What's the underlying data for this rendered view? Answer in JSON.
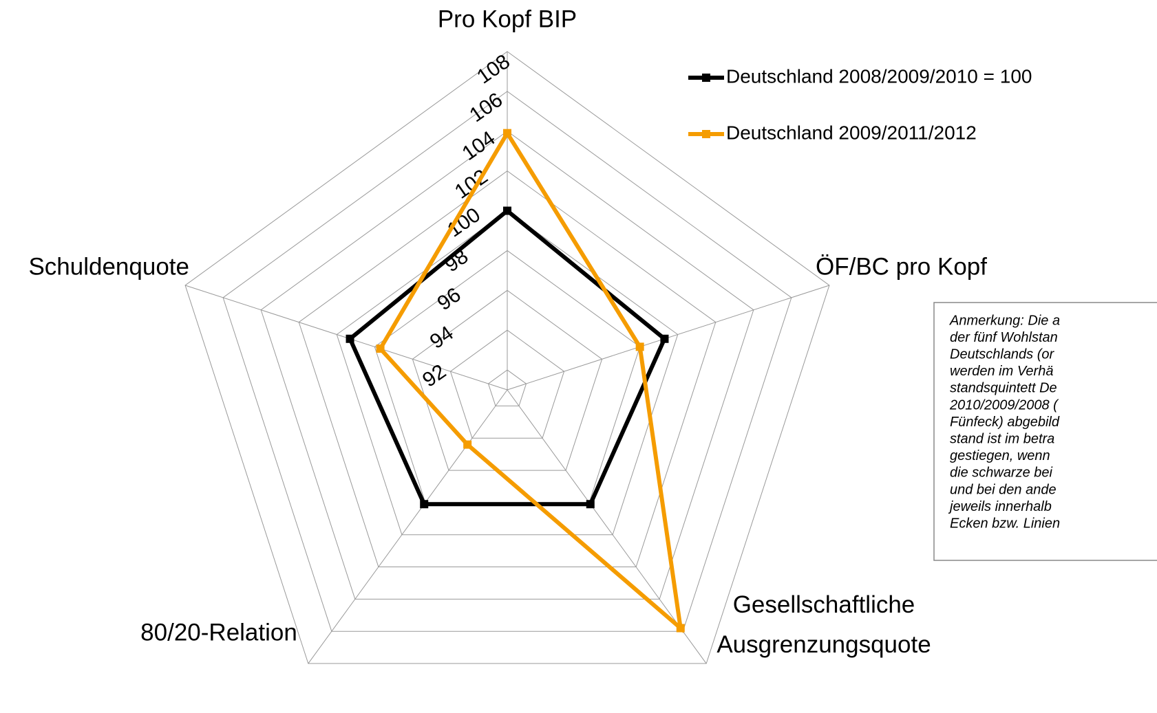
{
  "chart_data": {
    "type": "radar",
    "categories": [
      "Pro Kopf BIP",
      "ÖF/BC pro Kopf",
      "Gesellschaftliche Ausgrenzungsquote",
      "80/20-Relation",
      "Schuldenquote"
    ],
    "series": [
      {
        "name": "Deutschland 2008/2009/2010 = 100",
        "color": "#000000",
        "values": [
          100.0,
          99.3,
          98.1,
          98.1,
          99.3
        ]
      },
      {
        "name": "Deutschland 2009/2011/2012",
        "color": "#f59c00",
        "values": [
          103.9,
          98.0,
          105.8,
          94.4,
          97.7
        ]
      }
    ],
    "ylim": [
      91,
      108
    ],
    "yticks": [
      92,
      94,
      96,
      98,
      100,
      102,
      104,
      106,
      108
    ],
    "grid": true,
    "annotation": [
      "Anmerkung: Die a",
      "der fünf Wohlstan",
      "Deutschlands (or",
      "werden im Verhä",
      "standsquintett De",
      "2010/2009/2008 (",
      "Fünfeck) abgebild",
      "stand ist im betra",
      "gestiegen, wenn",
      "die schwarze bei",
      "und bei den ande",
      "jeweils innerhalb",
      "Ecken bzw. Linien"
    ]
  }
}
